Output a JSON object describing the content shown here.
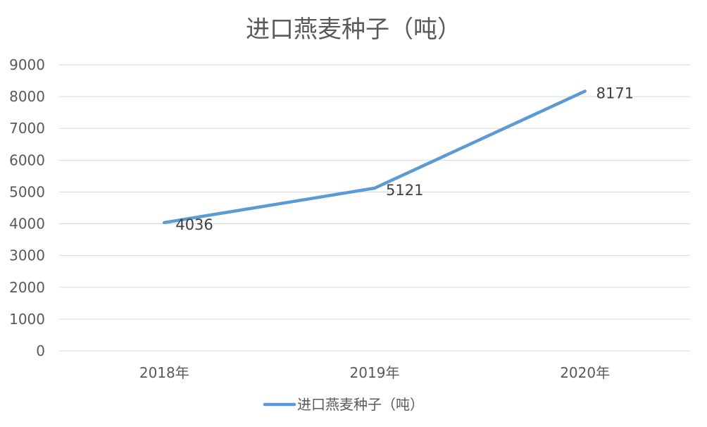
{
  "chart_data": {
    "type": "line",
    "title": "进口燕麦种子（吨）",
    "categories": [
      "2018年",
      "2019年",
      "2020年"
    ],
    "series": [
      {
        "name": "进口燕麦种子（吨）",
        "values": [
          4036,
          5121,
          8171
        ],
        "color": "#5B9BD5"
      }
    ],
    "y_ticks": [
      "0",
      "1000",
      "2000",
      "3000",
      "4000",
      "5000",
      "6000",
      "7000",
      "8000",
      "9000"
    ],
    "data_labels": [
      "4036",
      "5121",
      "8171"
    ],
    "ylim": [
      0,
      9000
    ],
    "grid": true,
    "legend_position": "bottom",
    "xlabel": "",
    "ylabel": ""
  }
}
